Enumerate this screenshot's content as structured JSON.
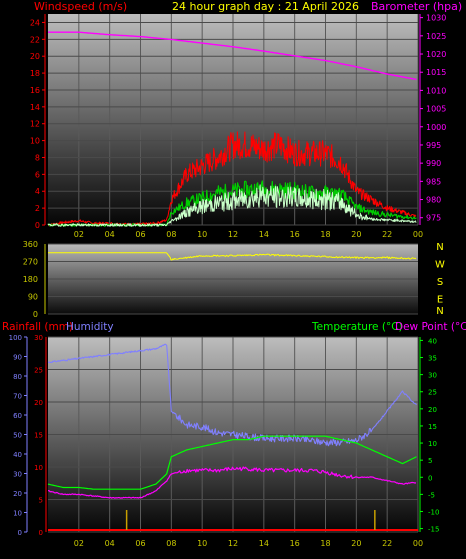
{
  "header": {
    "left_label": "Windspeed (m/s)",
    "title": "24 hour graph day : 21 April 2026",
    "right_label": "Barometer (hpa)"
  },
  "colors": {
    "wind_gust": "#ff0000",
    "wind_avg": "#00cc00",
    "wind_low": "#c8ffc8",
    "barometer": "#ff00ff",
    "direction": "#ffff00",
    "rain": "#ff0000",
    "humidity": "#8080ff",
    "temperature": "#00ff00",
    "dewpoint": "#ff00ff",
    "tick_text": "#c8c800"
  },
  "chart_data": [
    {
      "type": "line",
      "name": "wind-barometer",
      "x_ticks": [
        "02",
        "04",
        "06",
        "08",
        "10",
        "12",
        "14",
        "16",
        "18",
        "20",
        "22",
        "00"
      ],
      "y_left_ticks": [
        0,
        2,
        4,
        6,
        8,
        10,
        12,
        14,
        16,
        18,
        20,
        22,
        24
      ],
      "y_left_range": [
        0,
        25
      ],
      "y_right_ticks": [
        975,
        980,
        985,
        990,
        995,
        1000,
        1005,
        1010,
        1015,
        1020,
        1025,
        1030
      ],
      "y_right_range": [
        973,
        1031
      ],
      "barometer": {
        "x": [
          0,
          2,
          4,
          6,
          8,
          10,
          12,
          14,
          16,
          18,
          20,
          22,
          23.9
        ],
        "y": [
          1026,
          1026,
          1025.3,
          1024.8,
          1024,
          1023,
          1022,
          1020.8,
          1019.5,
          1018.2,
          1016.5,
          1014.5,
          1013
        ]
      },
      "wind_gust": {
        "x": [
          0,
          1,
          2,
          3,
          4,
          5,
          6,
          7,
          7.7,
          8,
          9,
          10,
          11,
          12,
          13,
          14,
          15,
          16,
          17,
          18,
          19,
          20,
          21,
          22,
          23,
          23.9
        ],
        "y": [
          0,
          0.3,
          0.5,
          0.2,
          0.2,
          0.1,
          0.1,
          0.2,
          0.6,
          3,
          6,
          7,
          8,
          9.5,
          9.5,
          9,
          9.5,
          8.5,
          8.5,
          8.5,
          7.5,
          4,
          3,
          2,
          1.5,
          1
        ]
      },
      "wind_avg": {
        "x": [
          0,
          7.7,
          8,
          9,
          10,
          11,
          12,
          13,
          14,
          15,
          16,
          17,
          18,
          19,
          20,
          21,
          22,
          23,
          23.9
        ],
        "y": [
          0,
          0,
          1.5,
          2.6,
          3.2,
          3.8,
          4,
          4.2,
          4.3,
          4.2,
          4.1,
          3.8,
          3.8,
          3.6,
          2.1,
          1.5,
          1.2,
          1,
          0.8
        ]
      },
      "wind_low": {
        "x": [
          0,
          7.7,
          8,
          9,
          10,
          11,
          12,
          13,
          14,
          15,
          16,
          17,
          18,
          19,
          20,
          21,
          22,
          23,
          23.9
        ],
        "y": [
          0,
          0,
          0.5,
          1.5,
          2.2,
          2.6,
          2.9,
          3.2,
          3.5,
          3.3,
          3.2,
          3.1,
          3,
          2.7,
          1.2,
          0.7,
          0.6,
          0.5,
          0.4
        ]
      }
    },
    {
      "type": "line",
      "name": "wind-direction",
      "y_ticks": [
        0,
        90,
        180,
        270,
        360
      ],
      "y_range": [
        0,
        360
      ],
      "compass": [
        "N",
        "W",
        "S",
        "E",
        "N"
      ],
      "direction": {
        "x": [
          0,
          7.7,
          8,
          9,
          10,
          12,
          14,
          16,
          18,
          20,
          22,
          23.9
        ],
        "y": [
          315,
          315,
          280,
          290,
          300,
          300,
          305,
          300,
          295,
          290,
          290,
          285
        ]
      }
    },
    {
      "type": "line",
      "name": "rain-humidity-temperature",
      "labels": {
        "rain": "Rainfall (mm)",
        "humidity": "Humidity",
        "temperature": "Temperature (°C)",
        "dewpoint": "Dew Point (°C)"
      },
      "x_ticks": [
        "02",
        "04",
        "06",
        "08",
        "10",
        "12",
        "14",
        "16",
        "18",
        "20",
        "22",
        "00"
      ],
      "humidity_ticks": [
        0,
        10,
        20,
        30,
        40,
        50,
        60,
        70,
        80,
        90,
        100
      ],
      "humidity_range": [
        0,
        100
      ],
      "rain_ticks": [
        0,
        5,
        10,
        15,
        20,
        25,
        30
      ],
      "rain_range": [
        0,
        30
      ],
      "temp_ticks": [
        -15,
        -10,
        -5,
        0,
        5,
        10,
        15,
        20,
        25,
        30,
        35,
        40
      ],
      "temp_range": [
        -16,
        41
      ],
      "humidity": {
        "x": [
          0,
          1,
          2,
          3,
          4,
          5,
          6,
          7,
          7.6,
          7.7,
          8,
          9,
          10,
          11,
          12,
          13,
          14,
          15,
          16,
          17,
          18,
          19,
          20,
          21,
          22,
          23,
          23.9
        ],
        "y": [
          87,
          88,
          89,
          90,
          91,
          92,
          93,
          94,
          96,
          96,
          62,
          55,
          54,
          51,
          50,
          49,
          48,
          48,
          48,
          47,
          46,
          46,
          47,
          52,
          62,
          72,
          65
        ]
      },
      "temperature": {
        "x": [
          0,
          1,
          2,
          3,
          4,
          5,
          6,
          7,
          7.7,
          8,
          9,
          10,
          11,
          12,
          13,
          14,
          15,
          16,
          17,
          18,
          19,
          20,
          21,
          22,
          23,
          23.9
        ],
        "y": [
          -2,
          -3,
          -3,
          -3.5,
          -3.5,
          -3.5,
          -3.5,
          -2,
          1,
          6,
          8,
          9,
          10,
          11,
          11,
          12,
          12,
          12,
          12,
          12,
          11,
          10,
          8,
          6,
          4,
          6
        ]
      },
      "dewpoint": {
        "x": [
          0,
          1,
          2,
          3,
          4,
          5,
          6,
          7,
          7.7,
          8,
          9,
          10,
          11,
          12,
          13,
          14,
          15,
          16,
          17,
          18,
          19,
          20,
          21,
          22,
          23,
          23.9
        ],
        "y": [
          -4,
          -5,
          -5,
          -5.5,
          -6,
          -6,
          -6,
          -4,
          -1,
          1,
          2,
          2,
          2,
          2.5,
          2.5,
          2,
          2,
          2,
          2,
          1.5,
          0.5,
          0,
          0,
          -1,
          -2,
          -1.5
        ]
      },
      "rain_events": [
        5.1,
        21.2
      ]
    }
  ]
}
